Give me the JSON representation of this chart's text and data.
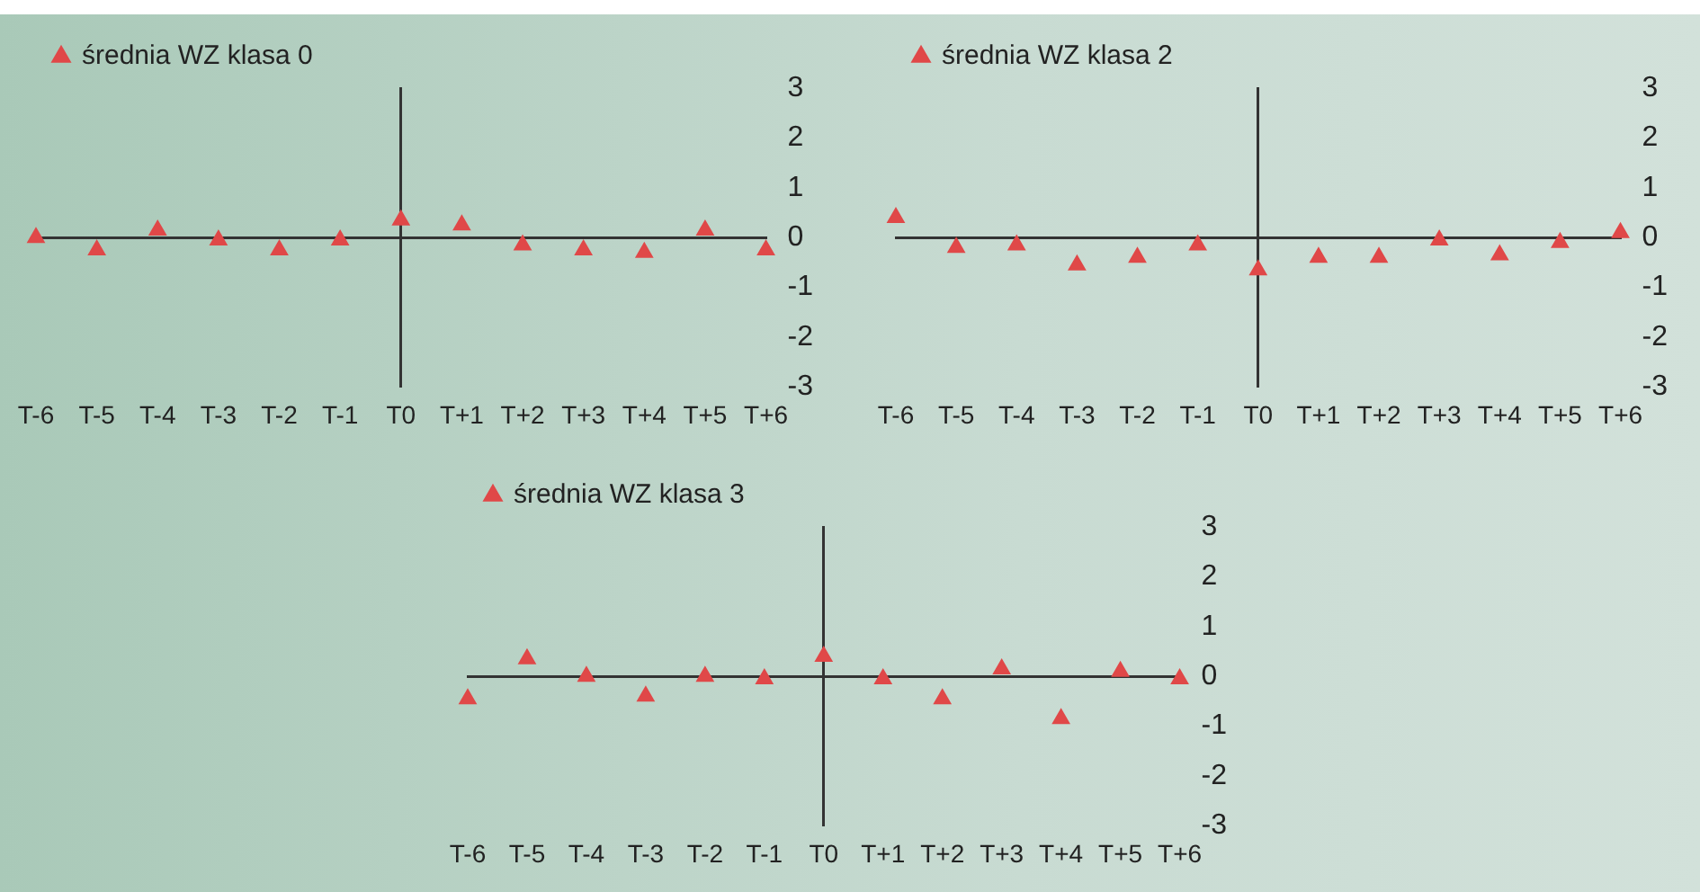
{
  "chart_data": [
    {
      "type": "scatter",
      "categories": [
        "T-6",
        "T-5",
        "T-4",
        "T-3",
        "T-2",
        "T-1",
        "T0",
        "T+1",
        "T+2",
        "T+3",
        "T+4",
        "T+5",
        "T+6"
      ],
      "ylim": [
        -3,
        3
      ],
      "yticks": [
        -3,
        -2,
        -1,
        0,
        1,
        2,
        3
      ],
      "legend": "top left",
      "marker": "triangle",
      "series": [
        {
          "name": "średnia WZ klasa 0",
          "color": "#e04848",
          "values": [
            0,
            -0.25,
            0.15,
            -0.05,
            -0.25,
            -0.05,
            0.35,
            0.25,
            -0.15,
            -0.25,
            -0.3,
            0.15,
            -0.25
          ]
        }
      ]
    },
    {
      "type": "scatter",
      "categories": [
        "T-6",
        "T-5",
        "T-4",
        "T-3",
        "T-2",
        "T-1",
        "T0",
        "T+1",
        "T+2",
        "T+3",
        "T+4",
        "T+5",
        "T+6"
      ],
      "ylim": [
        -3,
        3
      ],
      "yticks": [
        -3,
        -2,
        -1,
        0,
        1,
        2,
        3
      ],
      "legend": "top left",
      "marker": "triangle",
      "series": [
        {
          "name": "średnia WZ klasa 2",
          "color": "#e04848",
          "values": [
            0.4,
            -0.2,
            -0.15,
            -0.55,
            -0.4,
            -0.15,
            -0.65,
            -0.4,
            -0.4,
            -0.05,
            -0.35,
            -0.1,
            0.1
          ]
        }
      ]
    },
    {
      "type": "scatter",
      "categories": [
        "T-6",
        "T-5",
        "T-4",
        "T-3",
        "T-2",
        "T-1",
        "T0",
        "T+1",
        "T+2",
        "T+3",
        "T+4",
        "T+5",
        "T+6"
      ],
      "ylim": [
        -3,
        3
      ],
      "yticks": [
        -3,
        -2,
        -1,
        0,
        1,
        2,
        3
      ],
      "legend": "top left",
      "marker": "triangle",
      "series": [
        {
          "name": "średnia WZ klasa 3",
          "color": "#e04848",
          "values": [
            -0.45,
            0.35,
            0,
            -0.4,
            0,
            -0.05,
            0.4,
            -0.05,
            -0.45,
            0.15,
            -0.85,
            0.1,
            -0.05
          ]
        }
      ]
    }
  ]
}
